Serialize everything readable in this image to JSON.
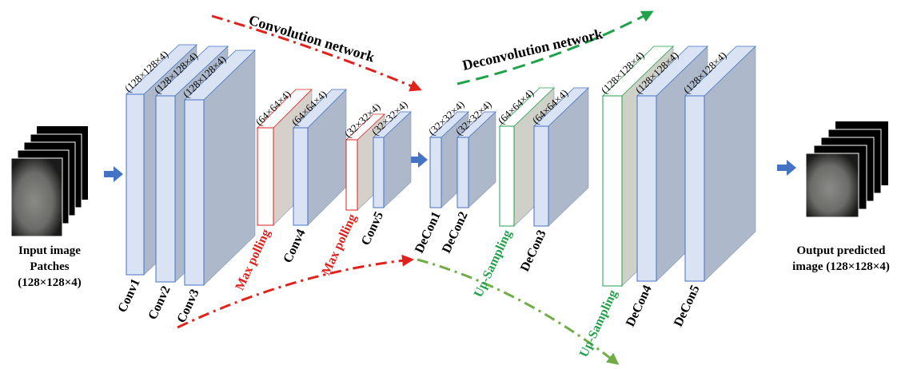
{
  "titles": {
    "convolution": "Convolution network",
    "deconvolution": "Deconvolution network"
  },
  "input": {
    "lines": [
      "Input image",
      "Patches",
      "(128×128×4)"
    ]
  },
  "output": {
    "lines": [
      "Output predicted",
      "image (128×128×4)"
    ]
  },
  "layers": [
    {
      "name": "Conv1",
      "size": "(128×128×4)"
    },
    {
      "name": "Conv2",
      "size": "(128×128×4)"
    },
    {
      "name": "Conv3",
      "size": "(128×128×4)"
    },
    {
      "name": "Max polling",
      "size": "(64×64×4)"
    },
    {
      "name": "Conv4",
      "size": "(64×64×4)"
    },
    {
      "name": "Max polling",
      "size": "(32×32×4)"
    },
    {
      "name": "Conv5",
      "size": "(32×32×4)"
    },
    {
      "name": "DeCon1",
      "size": "(32×32×4)"
    },
    {
      "name": "DeCon2",
      "size": "(32×32×4)"
    },
    {
      "name": "Up-Sampling",
      "size": "(64×64×4)"
    },
    {
      "name": "DeCon3",
      "size": "(64×64×4)"
    },
    {
      "name": "Up-Sampling",
      "size": "(128×128×4)"
    },
    {
      "name": "DeCon4",
      "size": "(128×128×4)"
    },
    {
      "name": "DeCon5",
      "size": "(128×128×4)"
    }
  ]
}
